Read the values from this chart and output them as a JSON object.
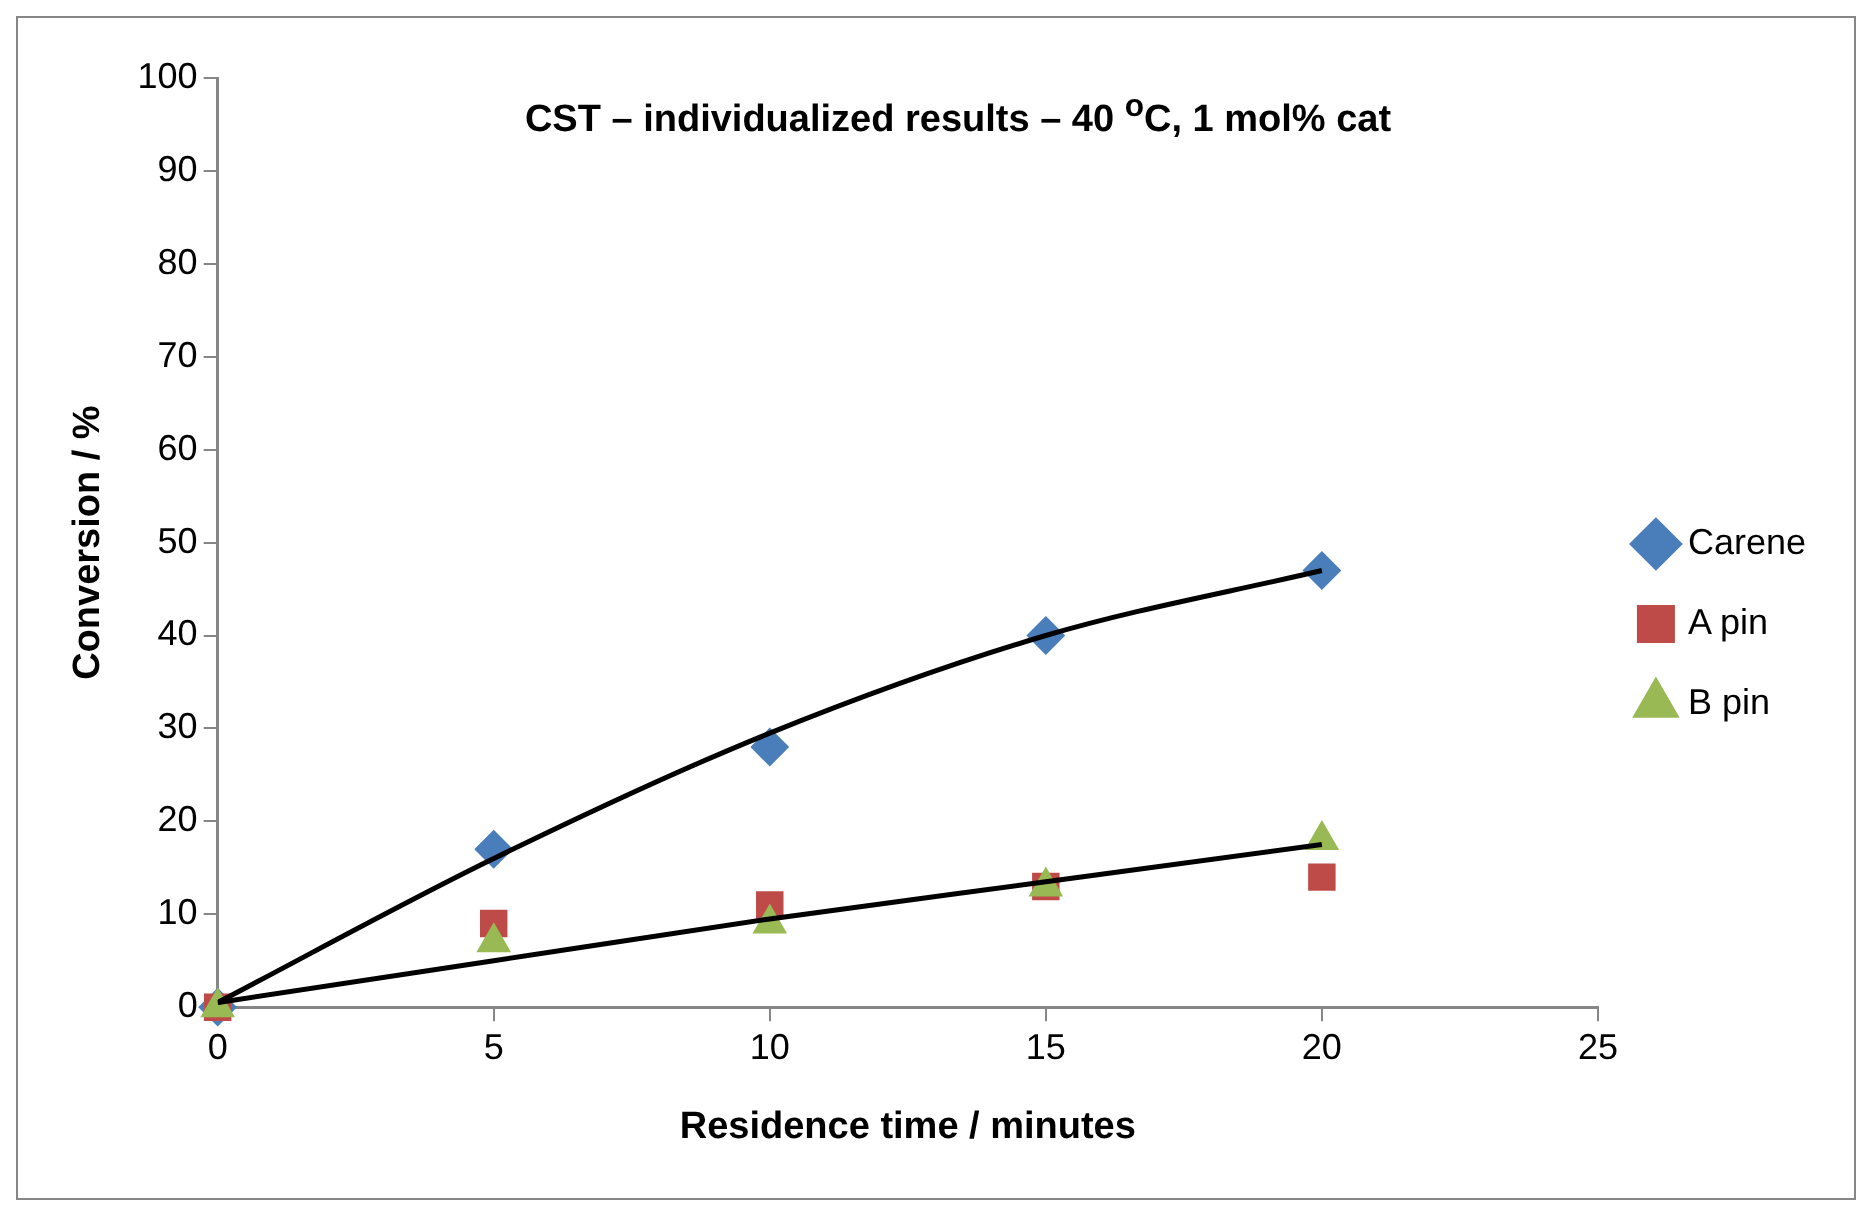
{
  "chart_data": {
    "type": "scatter",
    "title": "CST – individualized results – 40 $^{o}$C, 1 mol% cat",
    "xlabel": "Residence time / minutes",
    "ylabel": "Conversion / %",
    "x": [
      0,
      5,
      10,
      15,
      20
    ],
    "series": [
      {
        "name": "Carene",
        "color": "#4a7ebb",
        "marker": "diamond",
        "values": [
          0,
          17,
          28,
          40,
          47
        ]
      },
      {
        "name": "A pin",
        "color": "#be4b48",
        "marker": "square",
        "values": [
          0,
          9,
          11,
          13,
          14
        ]
      },
      {
        "name": "B pin",
        "color": "#98b954",
        "marker": "triangle",
        "values": [
          0,
          7,
          9,
          13,
          18
        ]
      },
      {
        "type": "line",
        "color": "#000000",
        "marker": "none",
        "values": [
          0.5,
          16,
          29.5,
          40,
          47
        ]
      },
      {
        "type": "line",
        "color": "#000000",
        "marker": "none",
        "values": [
          0.5,
          5,
          9.5,
          13.5,
          17.5
        ]
      }
    ],
    "xlim": [
      0,
      25
    ],
    "xticks": [
      0,
      5,
      10,
      15,
      20,
      25
    ],
    "ylim": [
      0,
      100
    ],
    "yticks": [
      0,
      10,
      20,
      30,
      40,
      50,
      60,
      70,
      80,
      90,
      100
    ],
    "grid": false,
    "legend": "right"
  }
}
